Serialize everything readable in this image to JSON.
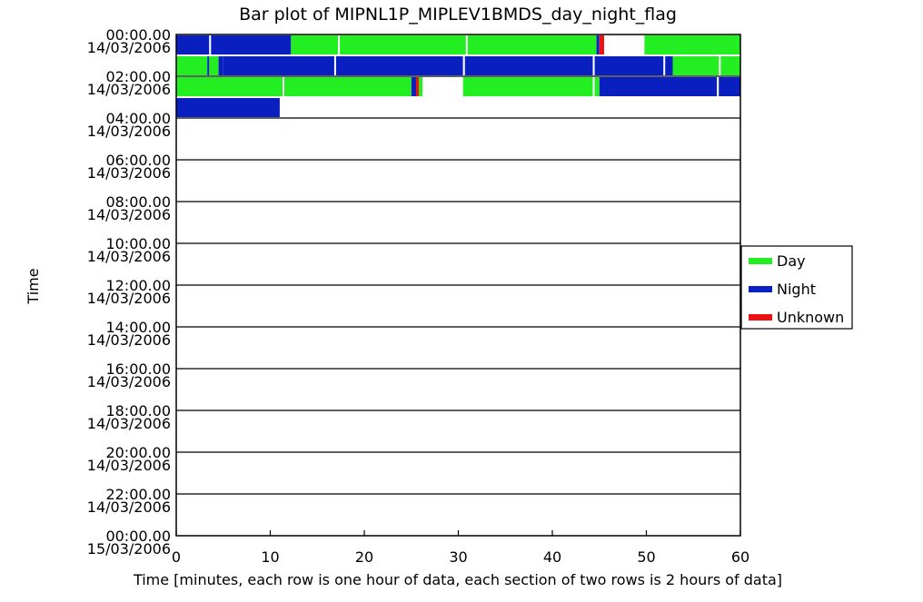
{
  "chart_data": {
    "type": "bar",
    "title": "Bar plot of MIPNL1P_MIPLEV1BMDS_day_night_flag",
    "xlabel": "Time [minutes, each row is one hour of data, each section of two rows is 2 hours of data]",
    "ylabel": "Time",
    "xlim": [
      0,
      60
    ],
    "x_ticks": [
      "0",
      "10",
      "20",
      "30",
      "40",
      "50",
      "60"
    ],
    "y_tick_labels": [
      {
        "time": "00:00.00",
        "date": "14/03/2006"
      },
      {
        "time": "02:00.00",
        "date": "14/03/2006"
      },
      {
        "time": "04:00.00",
        "date": "14/03/2006"
      },
      {
        "time": "06:00.00",
        "date": "14/03/2006"
      },
      {
        "time": "08:00.00",
        "date": "14/03/2006"
      },
      {
        "time": "10:00.00",
        "date": "14/03/2006"
      },
      {
        "time": "12:00.00",
        "date": "14/03/2006"
      },
      {
        "time": "14:00.00",
        "date": "14/03/2006"
      },
      {
        "time": "16:00.00",
        "date": "14/03/2006"
      },
      {
        "time": "18:00.00",
        "date": "14/03/2006"
      },
      {
        "time": "20:00.00",
        "date": "14/03/2006"
      },
      {
        "time": "22:00.00",
        "date": "14/03/2006"
      },
      {
        "time": "00:00.00",
        "date": "15/03/2006"
      }
    ],
    "legend": {
      "position": "right",
      "entries": [
        {
          "label": "Day",
          "color": "#22ee22"
        },
        {
          "label": "Night",
          "color": "#0a1fc0"
        },
        {
          "label": "Unknown",
          "color": "#ee1111"
        }
      ]
    },
    "rows": [
      {
        "hour": 0,
        "segments": [
          {
            "start": 0,
            "end": 3.5,
            "flag": "Night"
          },
          {
            "start": 3.7,
            "end": 12.2,
            "flag": "Night"
          },
          {
            "start": 12.2,
            "end": 17.2,
            "flag": "Day"
          },
          {
            "start": 17.4,
            "end": 30.8,
            "flag": "Day"
          },
          {
            "start": 31.0,
            "end": 44.7,
            "flag": "Day"
          },
          {
            "start": 44.7,
            "end": 45.0,
            "flag": "Night"
          },
          {
            "start": 45.0,
            "end": 45.5,
            "flag": "Unknown"
          },
          {
            "start": 49.8,
            "end": 60,
            "flag": "Day"
          }
        ]
      },
      {
        "hour": 1,
        "segments": [
          {
            "start": 0,
            "end": 3.3,
            "flag": "Day"
          },
          {
            "start": 3.3,
            "end": 3.5,
            "flag": "Night"
          },
          {
            "start": 3.5,
            "end": 4.5,
            "flag": "Day"
          },
          {
            "start": 4.5,
            "end": 5.0,
            "flag": "Night"
          },
          {
            "start": 5.0,
            "end": 16.8,
            "flag": "Night"
          },
          {
            "start": 17.0,
            "end": 30.5,
            "flag": "Night"
          },
          {
            "start": 30.7,
            "end": 44.3,
            "flag": "Night"
          },
          {
            "start": 44.5,
            "end": 51.8,
            "flag": "Night"
          },
          {
            "start": 52.0,
            "end": 52.8,
            "flag": "Night"
          },
          {
            "start": 52.8,
            "end": 57.7,
            "flag": "Day"
          },
          {
            "start": 57.9,
            "end": 60,
            "flag": "Day"
          }
        ]
      },
      {
        "hour": 2,
        "segments": [
          {
            "start": 0,
            "end": 11.3,
            "flag": "Day"
          },
          {
            "start": 11.5,
            "end": 25.0,
            "flag": "Day"
          },
          {
            "start": 25.0,
            "end": 25.5,
            "flag": "Night"
          },
          {
            "start": 25.5,
            "end": 25.8,
            "flag": "Unknown"
          },
          {
            "start": 25.8,
            "end": 26.2,
            "flag": "Day"
          },
          {
            "start": 30.5,
            "end": 44.3,
            "flag": "Day"
          },
          {
            "start": 44.5,
            "end": 45.0,
            "flag": "Day"
          },
          {
            "start": 45.0,
            "end": 45.5,
            "flag": "Night"
          },
          {
            "start": 45.5,
            "end": 57.5,
            "flag": "Night"
          },
          {
            "start": 57.7,
            "end": 60,
            "flag": "Night"
          }
        ]
      },
      {
        "hour": 3,
        "segments": [
          {
            "start": 0,
            "end": 11.0,
            "flag": "Night"
          }
        ]
      }
    ],
    "grid": "horizontal lines every 2 hours"
  }
}
